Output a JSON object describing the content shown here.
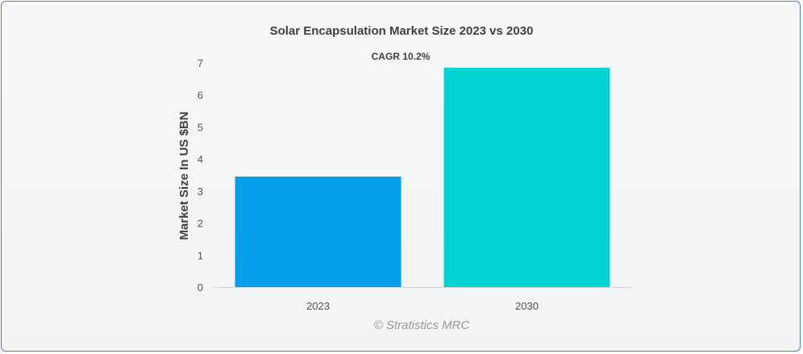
{
  "chart_data": {
    "type": "bar",
    "title": "Solar Encapsulation Market Size 2023 vs 2030",
    "annotation": "CAGR 10.2%",
    "ylabel": "Market Size In US $BN",
    "xlabel": "",
    "categories": [
      "2023",
      "2030"
    ],
    "values": [
      3.45,
      6.85
    ],
    "colors": [
      "#069ee9",
      "#03d3d3"
    ],
    "ylim": [
      0,
      7
    ],
    "yticks": [
      0,
      1,
      2,
      3,
      4,
      5,
      6,
      7
    ],
    "grid": false,
    "legend": "none"
  },
  "watermark": "© Stratistics MRC"
}
